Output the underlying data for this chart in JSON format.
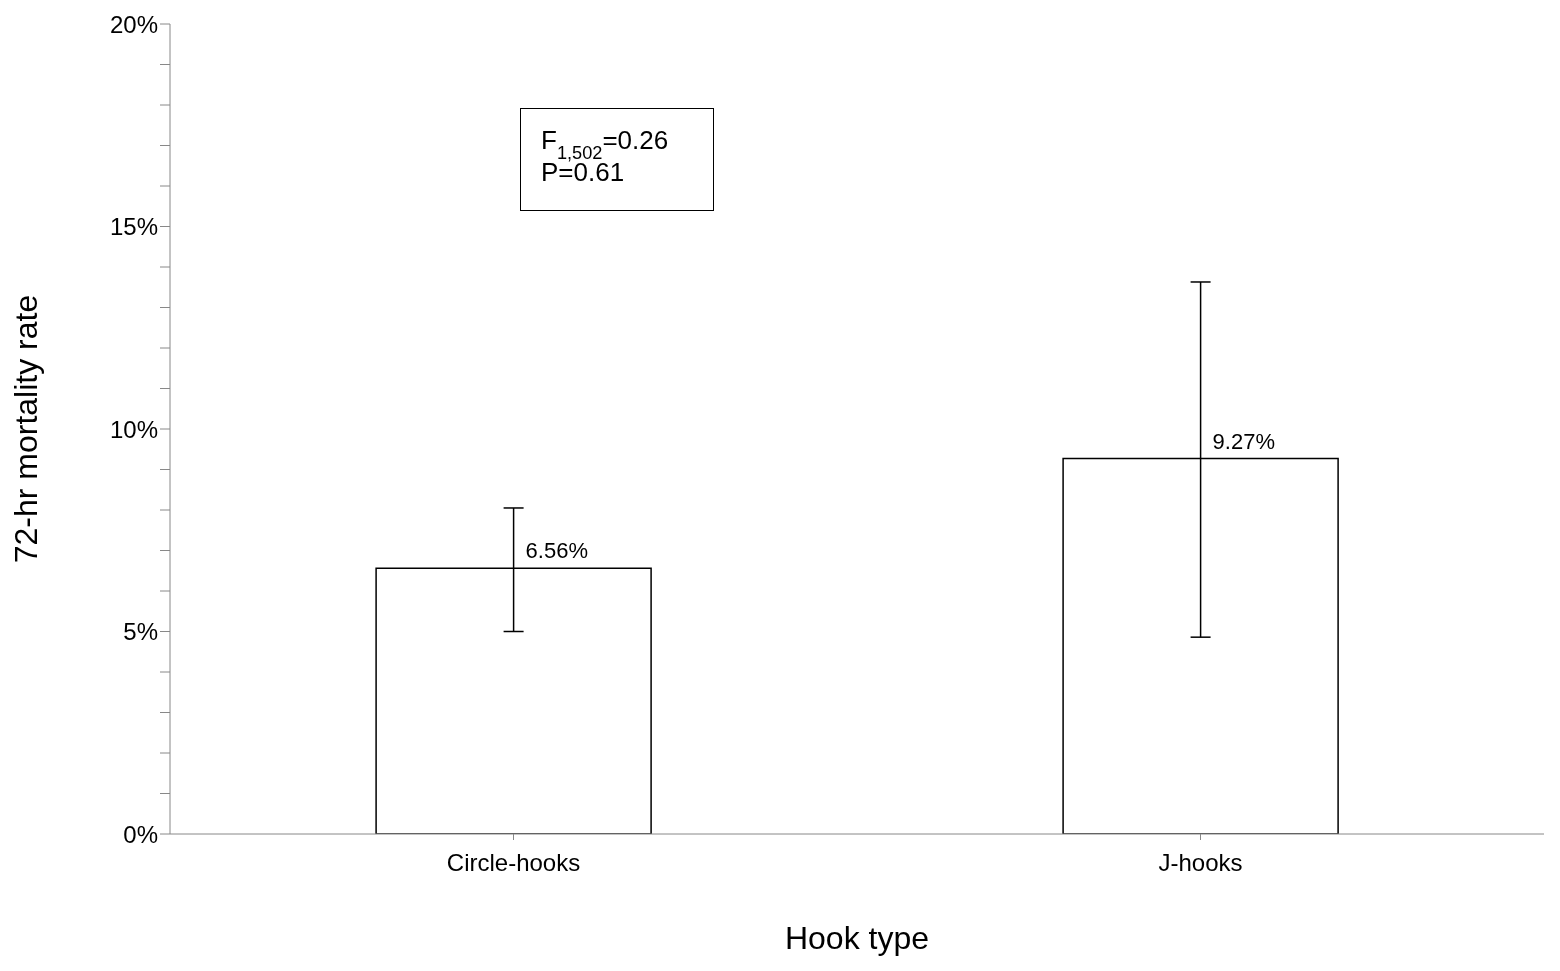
{
  "chart_data": {
    "type": "bar",
    "xlabel": "Hook type",
    "ylabel": "72-hr mortality rate",
    "categories": [
      "Circle-hooks",
      "J-hooks"
    ],
    "values": [
      6.56,
      9.27
    ],
    "value_labels": [
      "6.56%",
      "9.27%"
    ],
    "errors": [
      [
        5.0,
        8.05
      ],
      [
        4.86,
        13.63
      ]
    ],
    "color": "#ffffff",
    "ylim": [
      0,
      20
    ],
    "yticks": [
      {
        "value": 0,
        "label": "0%"
      },
      {
        "value": 1,
        "label": null
      },
      {
        "value": 2,
        "label": null
      },
      {
        "value": 3,
        "label": null
      },
      {
        "value": 4,
        "label": null
      },
      {
        "value": 5,
        "label": "5%"
      },
      {
        "value": 6,
        "label": null
      },
      {
        "value": 7,
        "label": null
      },
      {
        "value": 8,
        "label": null
      },
      {
        "value": 9,
        "label": null
      },
      {
        "value": 10,
        "label": "10%"
      },
      {
        "value": 11,
        "label": null
      },
      {
        "value": 12,
        "label": null
      },
      {
        "value": 13,
        "label": null
      },
      {
        "value": 14,
        "label": null
      },
      {
        "value": 15,
        "label": "15%"
      },
      {
        "value": 16,
        "label": null
      },
      {
        "value": 17,
        "label": null
      },
      {
        "value": 18,
        "label": null
      },
      {
        "value": 19,
        "label": null
      },
      {
        "value": 20,
        "label": "20%"
      }
    ],
    "annotations": [
      "F$_{1,502}$=0.26",
      "P=0.61"
    ],
    "grid": false,
    "legend": false
  }
}
